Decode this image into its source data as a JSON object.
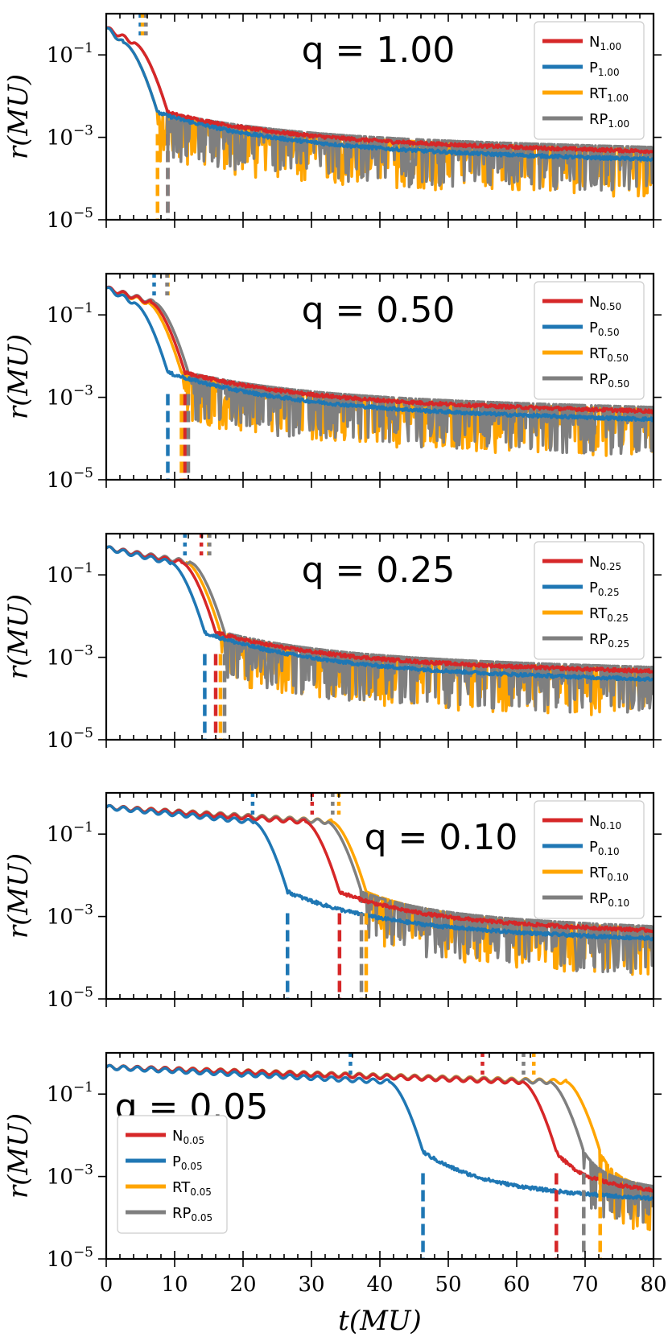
{
  "chart_data": {
    "type": "line",
    "yscale": "log",
    "xlabel": "t(MU)",
    "ylabel": "r(MU)",
    "xlim": [
      0,
      80
    ],
    "ylim": [
      1e-05,
      1
    ],
    "x_ticks": [
      "0",
      "10",
      "20",
      "30",
      "40",
      "50",
      "60",
      "70",
      "80"
    ],
    "y_ticks": [
      {
        "base": "10",
        "exp": "−1",
        "value": 0.1
      },
      {
        "base": "10",
        "exp": "−3",
        "value": 0.001
      },
      {
        "base": "10",
        "exp": "−5",
        "value": 1e-05
      }
    ],
    "grid": false,
    "colors": {
      "N": "#d62728",
      "P": "#1f77b4",
      "RT": "#ffa500",
      "RP": "#7f7f7f"
    },
    "panels": [
      {
        "title": "q = 1.00",
        "legend_loc": "upper-right",
        "series": [
          {
            "name": "N",
            "sub": "1.00",
            "color_key": "N",
            "merger_t": 9.0,
            "event_t": 5.8
          },
          {
            "name": "P",
            "sub": "1.00",
            "color_key": "P",
            "merger_t": 7.5,
            "event_t": 5.0
          },
          {
            "name": "RT",
            "sub": "1.00",
            "color_key": "RT",
            "merger_t": 7.5,
            "event_t": 5.3
          },
          {
            "name": "RP",
            "sub": "1.00",
            "color_key": "RP",
            "merger_t": 9.0,
            "event_t": 5.8
          }
        ]
      },
      {
        "title": "q = 0.50",
        "legend_loc": "upper-right",
        "series": [
          {
            "name": "N",
            "sub": "0.50",
            "color_key": "N",
            "merger_t": 11.5,
            "event_t": 8.9
          },
          {
            "name": "P",
            "sub": "0.50",
            "color_key": "P",
            "merger_t": 9.0,
            "event_t": 7.0
          },
          {
            "name": "RT",
            "sub": "0.50",
            "color_key": "RT",
            "merger_t": 11.0,
            "event_t": 9.0
          },
          {
            "name": "RP",
            "sub": "0.50",
            "color_key": "RP",
            "merger_t": 12.0,
            "event_t": 8.9
          }
        ]
      },
      {
        "title": "q = 0.25",
        "legend_loc": "upper-right",
        "series": [
          {
            "name": "N",
            "sub": "0.25",
            "color_key": "N",
            "merger_t": 16.0,
            "event_t": 13.9
          },
          {
            "name": "P",
            "sub": "0.25",
            "color_key": "P",
            "merger_t": 14.4,
            "event_t": 11.5
          },
          {
            "name": "RT",
            "sub": "0.25",
            "color_key": "RT",
            "merger_t": 16.7,
            "event_t": 15.0
          },
          {
            "name": "RP",
            "sub": "0.25",
            "color_key": "RP",
            "merger_t": 17.3,
            "event_t": 15.1
          }
        ]
      },
      {
        "title": "q = 0.10",
        "legend_loc": "upper-right",
        "series": [
          {
            "name": "N",
            "sub": "0.10",
            "color_key": "N",
            "merger_t": 34.1,
            "event_t": 30.1
          },
          {
            "name": "P",
            "sub": "0.10",
            "color_key": "P",
            "merger_t": 26.5,
            "event_t": 21.4
          },
          {
            "name": "RT",
            "sub": "0.10",
            "color_key": "RT",
            "merger_t": 38.0,
            "event_t": 34.0
          },
          {
            "name": "RP",
            "sub": "0.10",
            "color_key": "RP",
            "merger_t": 37.3,
            "event_t": 33.1
          }
        ]
      },
      {
        "title": "q = 0.05",
        "legend_loc": "lower-left",
        "series": [
          {
            "name": "N",
            "sub": "0.05",
            "color_key": "N",
            "merger_t": 65.8,
            "event_t": 55.0
          },
          {
            "name": "P",
            "sub": "0.05",
            "color_key": "P",
            "merger_t": 46.3,
            "event_t": 35.7
          },
          {
            "name": "RT",
            "sub": "0.05",
            "color_key": "RT",
            "merger_t": 72.2,
            "event_t": 62.5
          },
          {
            "name": "RP",
            "sub": "0.05",
            "color_key": "RP",
            "merger_t": 69.8,
            "event_t": 61.0
          }
        ]
      }
    ]
  }
}
